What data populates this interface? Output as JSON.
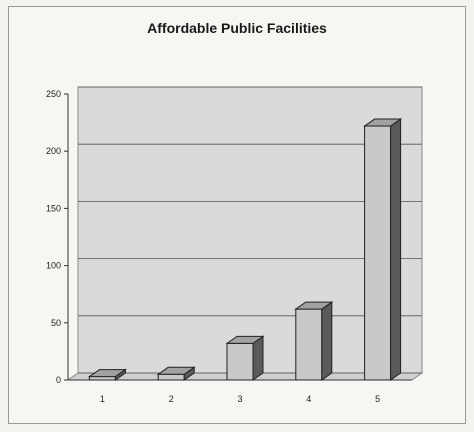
{
  "chart_data": {
    "type": "bar",
    "title": "Affordable Public Facilities",
    "categories": [
      "1",
      "2",
      "3",
      "4",
      "5"
    ],
    "values": [
      3,
      5,
      32,
      62,
      222
    ],
    "ylim": [
      0,
      250
    ],
    "yticks": [
      0,
      50,
      100,
      150,
      200,
      250
    ],
    "grid": true,
    "legend": "none",
    "bar_color": "#c9c9c9",
    "plot_background": "#dadada"
  }
}
